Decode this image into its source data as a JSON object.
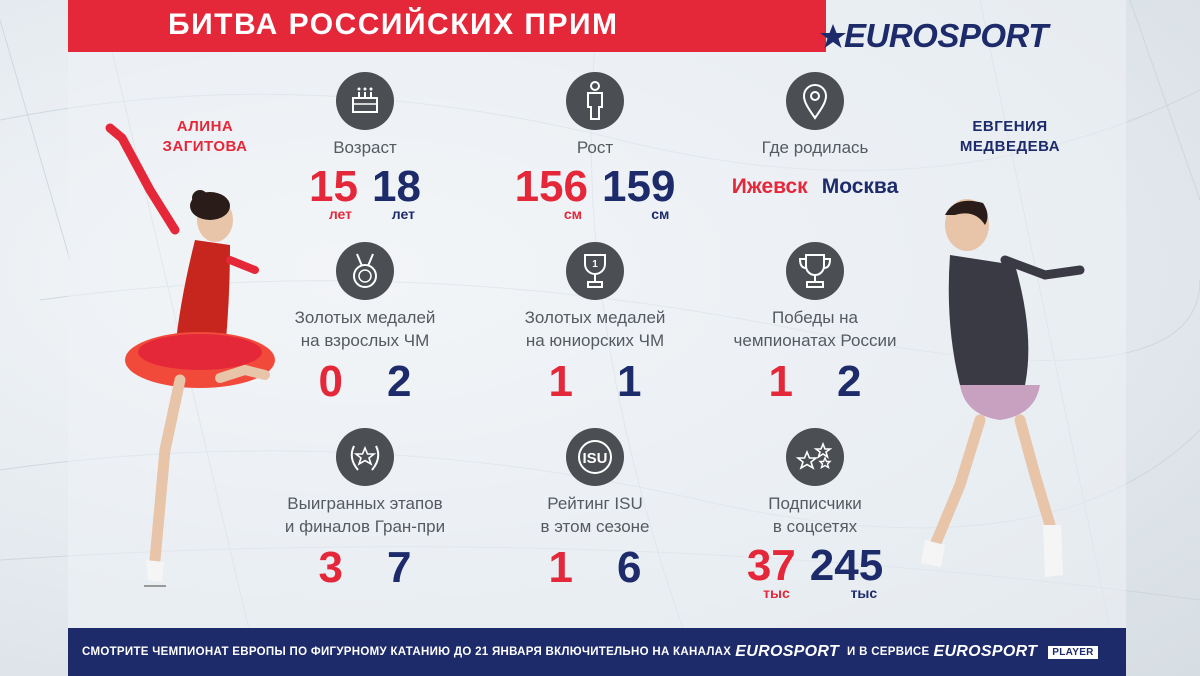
{
  "header": {
    "title": "БИТВА РОССИЙСКИХ ПРИМ",
    "brand": "EUROSPORT"
  },
  "athletes": {
    "left": {
      "name_line1": "АЛИНА",
      "name_line2": "ЗАГИТОВА"
    },
    "right": {
      "name_line1": "ЕВГЕНИЯ",
      "name_line2": "МЕДВЕДЕВА"
    }
  },
  "colors": {
    "red": "#e4283a",
    "blue": "#1d2b6b",
    "icon_bg": "#4b4e53"
  },
  "stats": {
    "age": {
      "icon": "birthday-cake-icon",
      "label": "Возраст",
      "left": "15",
      "left_unit": "лет",
      "right": "18",
      "right_unit": "лет"
    },
    "height": {
      "icon": "person-icon",
      "label": "Рост",
      "left": "156",
      "left_unit": "см",
      "right": "159",
      "right_unit": "см"
    },
    "birthplace": {
      "icon": "map-pin-icon",
      "label": "Где родилась",
      "left": "Ижевск",
      "right": "Москва"
    },
    "senior_gold": {
      "icon": "medal-icon",
      "label_line1": "Золотых медалей",
      "label_line2": "на взрослых ЧМ",
      "left": "0",
      "right": "2"
    },
    "junior_gold": {
      "icon": "trophy-cup-icon",
      "label_line1": "Золотых медалей",
      "label_line2": "на юниорских ЧМ",
      "left": "1",
      "right": "1"
    },
    "russia_wins": {
      "icon": "trophy-icon",
      "label_line1": "Победы на",
      "label_line2": "чемпионатах России",
      "left": "1",
      "right": "2"
    },
    "grand_prix": {
      "icon": "laurel-star-icon",
      "label_line1": "Выигранных этапов",
      "label_line2": "и финалов Гран-при",
      "left": "3",
      "right": "7"
    },
    "isu_rating": {
      "icon": "isu-logo-icon",
      "icon_text": "ISU",
      "label_line1": "Рейтинг ISU",
      "label_line2": "в этом сезоне",
      "left": "1",
      "right": "6"
    },
    "followers": {
      "icon": "stars-icon",
      "label_line1": "Подписчики",
      "label_line2": "в соцсетях",
      "left": "37",
      "left_unit": "тыс",
      "right": "245",
      "right_unit": "тыс"
    }
  },
  "footer": {
    "text1": "СМОТРИТЕ ЧЕМПИОНАТ ЕВРОПЫ ПО ФИГУРНОМУ КАТАНИЮ ДО 21 ЯНВАРЯ ВКЛЮЧИТЕЛЬНО НА КАНАЛАХ",
    "brand1": "EUROSPORT",
    "text2": "И В СЕРВИСЕ",
    "brand2": "EUROSPORT",
    "badge": "PLAYER"
  }
}
